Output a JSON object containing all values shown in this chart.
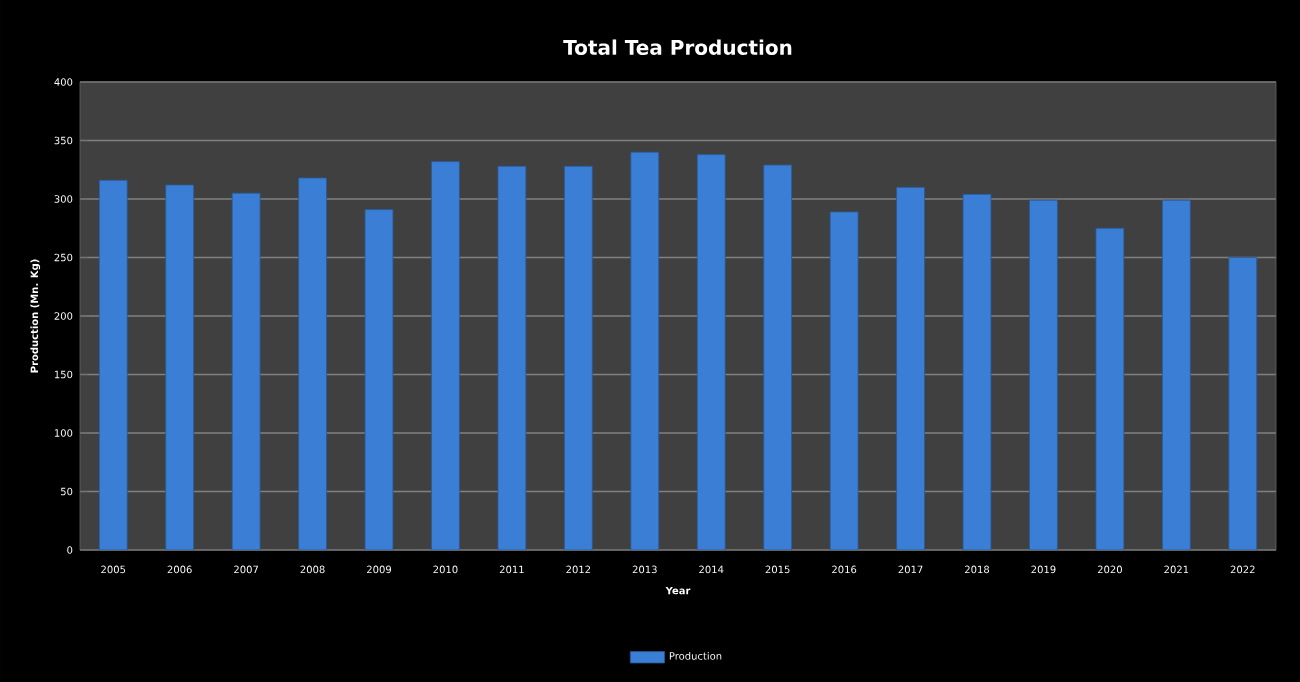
{
  "chart_data": {
    "type": "bar",
    "title": "Total Tea Production",
    "xlabel": "Year",
    "ylabel": "Production (Mn. Kg)",
    "categories": [
      "2005",
      "2006",
      "2007",
      "2008",
      "2009",
      "2010",
      "2011",
      "2012",
      "2013",
      "2014",
      "2015",
      "2016",
      "2017",
      "2018",
      "2019",
      "2020",
      "2021",
      "2022"
    ],
    "series": [
      {
        "name": "Production",
        "color": "#3a7fd5",
        "values": [
          316,
          312,
          305,
          318,
          291,
          332,
          328,
          328,
          340,
          338,
          329,
          289,
          310,
          304,
          299,
          275,
          299,
          250
        ]
      }
    ],
    "ylim": [
      0,
      400
    ],
    "yticks": [
      0,
      50,
      100,
      150,
      200,
      250,
      300,
      350,
      400
    ],
    "grid": "y",
    "legend": "bottom"
  }
}
